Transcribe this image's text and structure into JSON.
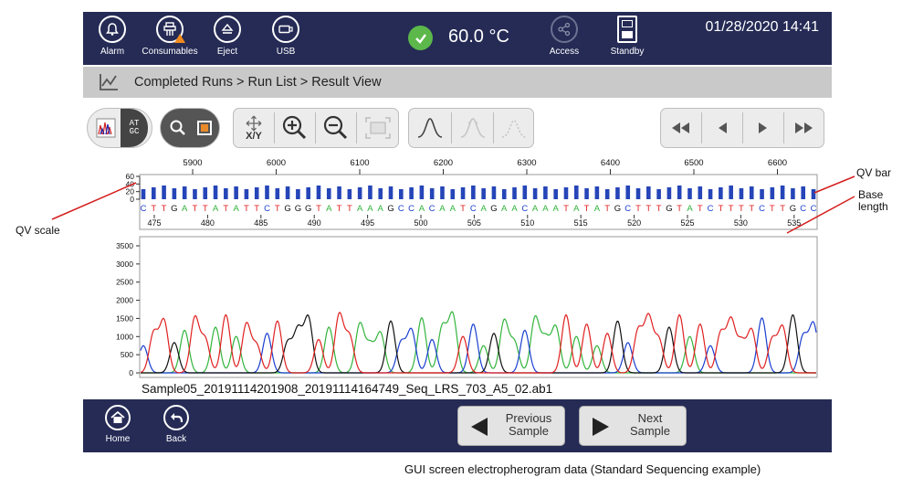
{
  "topbar": {
    "buttons": [
      {
        "label": "Alarm",
        "icon": "bell-icon"
      },
      {
        "label": "Consumables",
        "icon": "consumables-icon"
      },
      {
        "label": "Eject",
        "icon": "eject-icon"
      },
      {
        "label": "USB",
        "icon": "usb-icon"
      }
    ],
    "temperature": "60.0 °C",
    "access_label": "Access",
    "standby_label": "Standby",
    "datetime": "01/28/2020 14:41"
  },
  "breadcrumb": "Completed Runs > Run List > Result View",
  "toolbar": {
    "base_view_text_top": "AT",
    "base_view_text_bottom": "GC",
    "xy_label": "X/Y"
  },
  "chart_data": {
    "type": "line",
    "title": "",
    "top_axis_ticks": [
      "5900",
      "6000",
      "6100",
      "6200",
      "6300",
      "6400",
      "6500",
      "6600"
    ],
    "qv_scale_ticks": [
      "60",
      "40",
      "20",
      "0"
    ],
    "bases": "CTTGATTATATTCTGGGTATTAAAGCCACAATCAGAACAAATATATGCTTTGTATCTTTTCTTGCC",
    "base_position_ticks": [
      "475",
      "480",
      "485",
      "490",
      "495",
      "500",
      "505",
      "510",
      "515",
      "520",
      "525",
      "530",
      "535"
    ],
    "y_ticks": [
      "3500",
      "3000",
      "2500",
      "2000",
      "1500",
      "1000",
      "500",
      "0"
    ],
    "ylim": [
      0,
      3500
    ],
    "trace_colors": {
      "A": "#32b43c",
      "C": "#1a3fd0",
      "G": "#111111",
      "T": "#e02020"
    }
  },
  "filename": "Sample05_20191114201908_20191114164749_Seq_LRS_703_A5_02.ab1",
  "bottombar": {
    "home_label": "Home",
    "back_label": "Back",
    "previous_line1": "Previous",
    "previous_line2": "Sample",
    "next_line1": "Next",
    "next_line2": "Sample"
  },
  "annotations": {
    "qv_scale": "QV scale",
    "qv_bar": "QV bar",
    "base_length_1": "Base",
    "base_length_2": "length"
  },
  "caption": "GUI screen electropherogram data (Standard Sequencing example)"
}
